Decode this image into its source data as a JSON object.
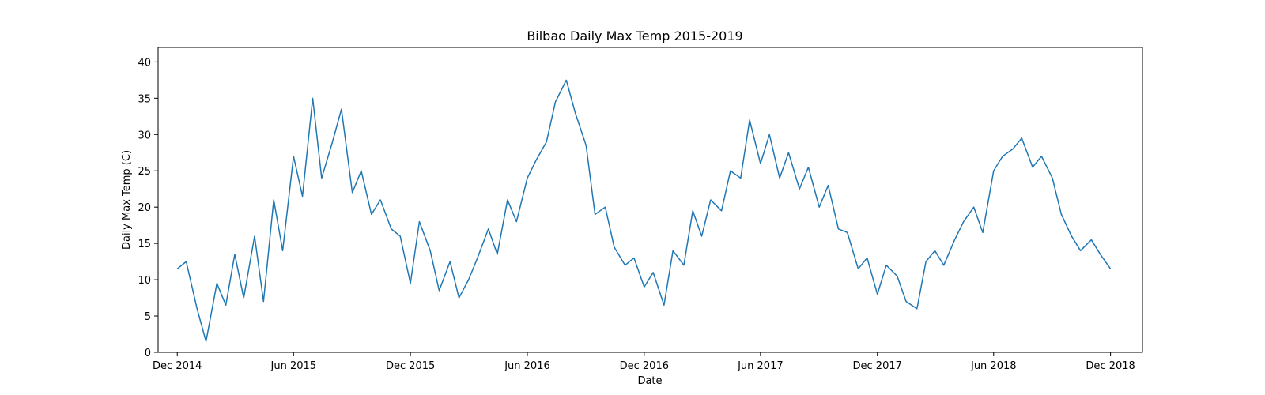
{
  "chart_data": {
    "type": "line",
    "title": "Bilbao Daily Max Temp 2015-2019",
    "xlabel": "Date",
    "ylabel": "Daily Max Temp (C)",
    "xlim": [
      "2014-11-01",
      "2019-01-20"
    ],
    "ylim": [
      0,
      42
    ],
    "grid": false,
    "legend": "none",
    "x_ticks": [
      {
        "date": "2014-12-01",
        "label": "Dec 2014"
      },
      {
        "date": "2015-06-01",
        "label": "Jun 2015"
      },
      {
        "date": "2015-12-01",
        "label": "Dec 2015"
      },
      {
        "date": "2016-06-01",
        "label": "Jun 2016"
      },
      {
        "date": "2016-12-01",
        "label": "Dec 2016"
      },
      {
        "date": "2017-06-01",
        "label": "Jun 2017"
      },
      {
        "date": "2017-12-01",
        "label": "Dec 2017"
      },
      {
        "date": "2018-06-01",
        "label": "Jun 2018"
      },
      {
        "date": "2018-12-01",
        "label": "Dec 2018"
      }
    ],
    "y_ticks": [
      0,
      5,
      10,
      15,
      20,
      25,
      30,
      35,
      40
    ],
    "series": [
      {
        "color": "#1f77b4",
        "x": [
          "2014-12-01",
          "2014-12-15",
          "2015-01-01",
          "2015-01-15",
          "2015-02-01",
          "2015-02-15",
          "2015-03-01",
          "2015-03-15",
          "2015-04-01",
          "2015-04-15",
          "2015-05-01",
          "2015-05-15",
          "2015-06-01",
          "2015-06-15",
          "2015-07-01",
          "2015-07-15",
          "2015-08-01",
          "2015-08-15",
          "2015-09-01",
          "2015-09-15",
          "2015-10-01",
          "2015-10-15",
          "2015-11-01",
          "2015-11-15",
          "2015-12-01",
          "2015-12-15",
          "2016-01-01",
          "2016-01-15",
          "2016-02-01",
          "2016-02-15",
          "2016-03-01",
          "2016-03-15",
          "2016-04-01",
          "2016-04-15",
          "2016-05-01",
          "2016-05-15",
          "2016-06-01",
          "2016-06-15",
          "2016-07-01",
          "2016-07-15",
          "2016-08-01",
          "2016-08-15",
          "2016-09-01",
          "2016-09-15",
          "2016-10-01",
          "2016-10-15",
          "2016-11-01",
          "2016-11-15",
          "2016-12-01",
          "2016-12-15",
          "2017-01-01",
          "2017-01-15",
          "2017-02-01",
          "2017-02-15",
          "2017-03-01",
          "2017-03-15",
          "2017-04-01",
          "2017-04-15",
          "2017-05-01",
          "2017-05-15",
          "2017-06-01",
          "2017-06-15",
          "2017-07-01",
          "2017-07-15",
          "2017-08-01",
          "2017-08-15",
          "2017-09-01",
          "2017-09-15",
          "2017-10-01",
          "2017-10-15",
          "2017-11-01",
          "2017-11-15",
          "2017-12-01",
          "2017-12-15",
          "2018-01-01",
          "2018-01-15",
          "2018-02-01",
          "2018-02-15",
          "2018-03-01",
          "2018-03-15",
          "2018-04-01",
          "2018-04-15",
          "2018-05-01",
          "2018-05-15",
          "2018-06-01",
          "2018-06-15",
          "2018-07-01",
          "2018-07-15",
          "2018-08-01",
          "2018-08-15",
          "2018-09-01",
          "2018-09-15",
          "2018-10-01",
          "2018-10-15",
          "2018-11-01",
          "2018-11-15",
          "2018-12-01"
        ],
        "y": [
          11.5,
          12.5,
          6.0,
          1.5,
          9.5,
          6.5,
          13.5,
          7.5,
          16.0,
          7.0,
          21.0,
          14.0,
          27.0,
          21.5,
          35.0,
          24.0,
          29.0,
          33.5,
          22.0,
          25.0,
          19.0,
          21.0,
          17.0,
          16.0,
          9.5,
          18.0,
          14.0,
          8.5,
          12.5,
          7.5,
          10.0,
          13.0,
          17.0,
          13.5,
          21.0,
          18.0,
          24.0,
          26.5,
          29.0,
          34.5,
          37.5,
          33.0,
          28.5,
          19.0,
          20.0,
          14.5,
          12.0,
          13.0,
          9.0,
          11.0,
          6.5,
          14.0,
          12.0,
          19.5,
          16.0,
          21.0,
          19.5,
          25.0,
          24.0,
          32.0,
          26.0,
          30.0,
          24.0,
          27.5,
          22.5,
          25.5,
          20.0,
          23.0,
          17.0,
          16.5,
          11.5,
          13.0,
          8.0,
          12.0,
          10.5,
          7.0,
          6.0,
          12.5,
          14.0,
          12.0,
          15.5,
          18.0,
          20.0,
          16.5,
          25.0,
          27.0,
          28.0,
          29.5,
          25.5,
          27.0,
          24.0,
          19.0,
          16.0,
          14.0,
          15.5,
          13.5,
          11.5
        ]
      }
    ]
  }
}
